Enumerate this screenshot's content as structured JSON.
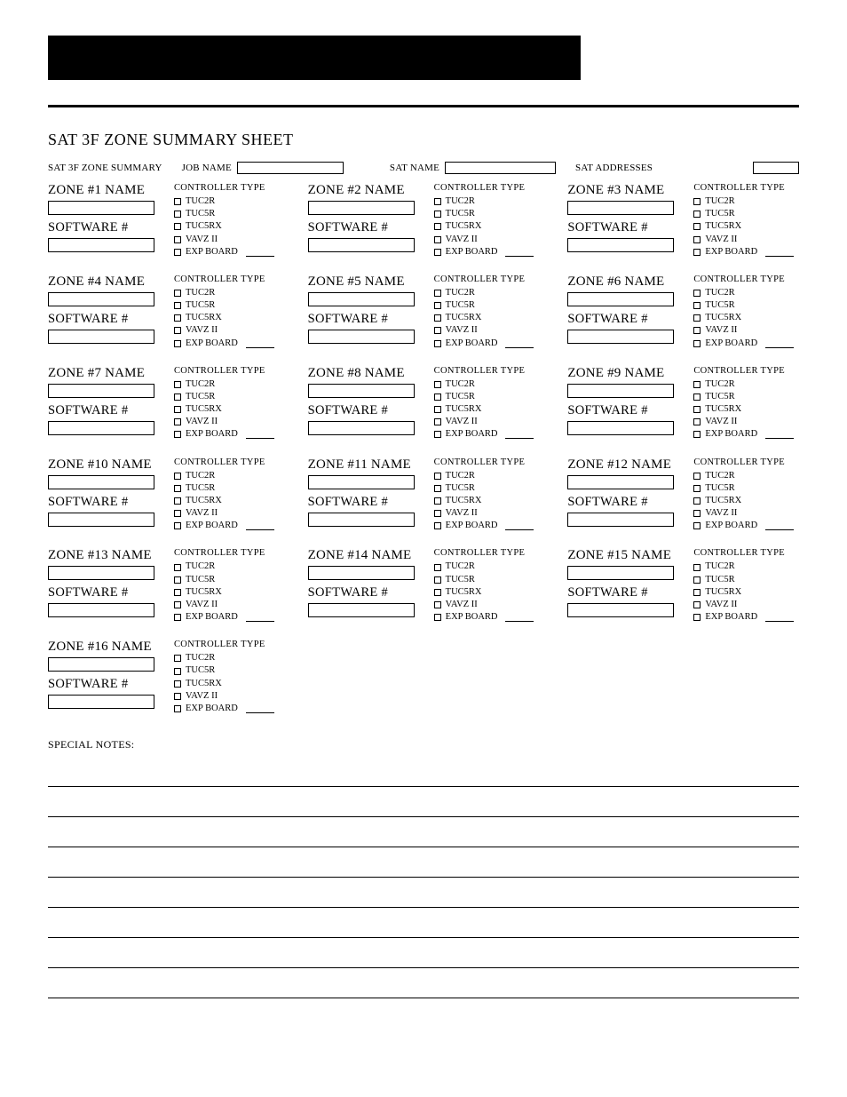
{
  "banner": {
    "bg": "#000000"
  },
  "title": "SAT 3F ZONE SUMMARY SHEET",
  "header": {
    "summary_label": "SAT 3F ZONE SUMMARY",
    "job_name_label": "JOB NAME",
    "sat_name_label": "SAT NAME",
    "sat_addresses_label": "SAT ADDRESSES",
    "job_name_value": "",
    "sat_name_value": "",
    "sat_addresses_value": ""
  },
  "zone_common": {
    "software_label": "SOFTWARE #",
    "controller_type_label": "CONTROLLER TYPE",
    "options": [
      "TUC2R",
      "TUC5R",
      "TUC5RX",
      "VAVZ II",
      "EXP BOARD"
    ]
  },
  "zones": [
    {
      "label": "ZONE #1 NAME",
      "name": "",
      "software": ""
    },
    {
      "label": "ZONE #2 NAME",
      "name": "",
      "software": ""
    },
    {
      "label": "ZONE #3 NAME",
      "name": "",
      "software": ""
    },
    {
      "label": "ZONE #4 NAME",
      "name": "",
      "software": ""
    },
    {
      "label": "ZONE #5 NAME",
      "name": "",
      "software": ""
    },
    {
      "label": "ZONE #6 NAME",
      "name": "",
      "software": ""
    },
    {
      "label": "ZONE #7 NAME",
      "name": "",
      "software": ""
    },
    {
      "label": "ZONE #8 NAME",
      "name": "",
      "software": ""
    },
    {
      "label": "ZONE #9 NAME",
      "name": "",
      "software": ""
    },
    {
      "label": "ZONE #10 NAME",
      "name": "",
      "software": ""
    },
    {
      "label": "ZONE #11 NAME",
      "name": "",
      "software": ""
    },
    {
      "label": "ZONE #12 NAME",
      "name": "",
      "software": ""
    },
    {
      "label": "ZONE #13 NAME",
      "name": "",
      "software": ""
    },
    {
      "label": "ZONE #14 NAME",
      "name": "",
      "software": ""
    },
    {
      "label": "ZONE #15 NAME",
      "name": "",
      "software": ""
    },
    {
      "label": "ZONE #16 NAME",
      "name": "",
      "software": ""
    }
  ],
  "special_notes_label": "SPECIAL NOTES:",
  "note_line_count": 8
}
